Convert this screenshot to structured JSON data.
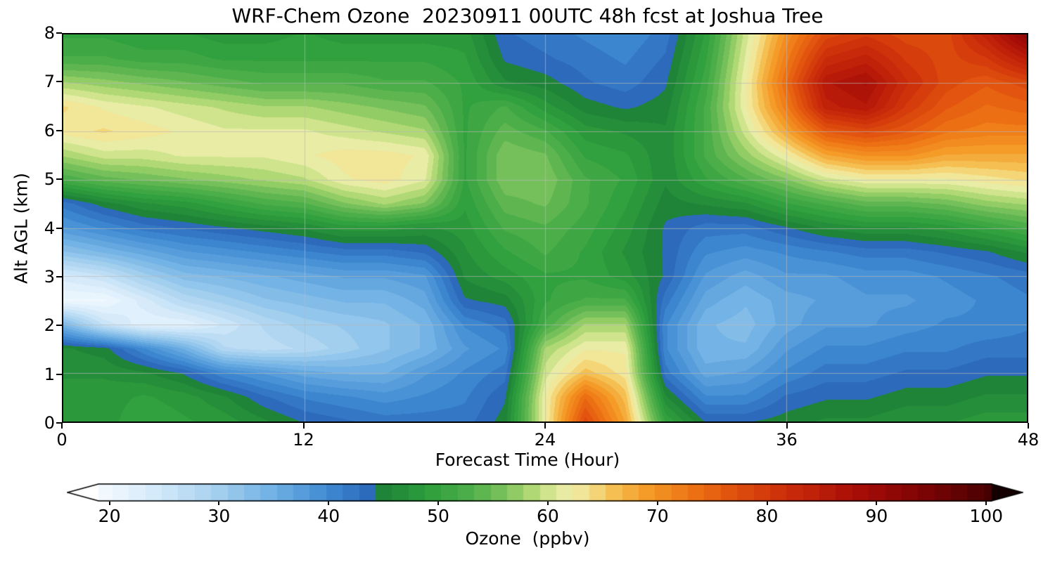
{
  "chart_data": {
    "type": "heatmap",
    "title": "WRF-Chem Ozone  20230911 00UTC 48h fcst at Joshua Tree",
    "xlabel": "Forecast Time (Hour)",
    "ylabel": "Alt AGL (km)",
    "colorbar_label": "Ozone  (ppbv)",
    "x_range": [
      0,
      48
    ],
    "y_range": [
      0,
      8
    ],
    "x_ticks": [
      0,
      12,
      24,
      36,
      48
    ],
    "y_ticks": [
      0,
      1,
      2,
      3,
      4,
      5,
      6,
      7,
      8
    ],
    "colorbar_ticks": [
      20,
      30,
      40,
      50,
      60,
      70,
      80,
      90,
      100
    ],
    "colorbar_range": [
      19,
      100.5
    ],
    "grid": true,
    "quantize_step": 1.5,
    "x": [
      0,
      2,
      4,
      6,
      8,
      10,
      12,
      14,
      16,
      18,
      20,
      22,
      24,
      26,
      28,
      30,
      32,
      34,
      36,
      38,
      40,
      42,
      44,
      46,
      48
    ],
    "y": [
      0,
      0.5,
      1,
      1.5,
      2,
      2.5,
      3,
      3.5,
      4,
      4.5,
      5,
      5.5,
      6,
      6.5,
      7,
      7.5,
      8
    ],
    "values": [
      [
        48,
        48,
        50,
        49,
        48,
        46,
        44,
        43,
        42,
        42,
        42,
        45,
        62,
        78,
        68,
        50,
        44,
        44,
        45,
        46,
        46,
        47,
        47,
        48,
        48
      ],
      [
        48,
        48,
        49,
        48,
        46,
        43,
        41,
        40,
        39,
        40,
        41,
        44,
        62,
        74,
        66,
        46,
        40,
        40,
        43,
        44,
        44,
        45,
        45,
        46,
        46
      ],
      [
        47,
        47,
        46,
        44,
        40,
        38,
        36,
        35,
        35,
        38,
        40,
        42,
        60,
        66,
        63,
        42,
        36,
        37,
        40,
        42,
        42,
        43,
        43,
        44,
        44
      ],
      [
        46,
        45,
        40,
        35,
        28,
        27,
        28,
        30,
        32,
        34,
        38,
        40,
        58,
        62,
        62,
        40,
        34,
        34,
        38,
        40,
        40,
        41,
        41,
        42,
        42
      ],
      [
        34,
        26,
        22,
        22,
        25,
        28,
        30,
        31,
        32,
        34,
        40,
        42,
        52,
        58,
        58,
        40,
        34,
        33,
        36,
        38,
        38,
        39,
        40,
        40,
        41
      ],
      [
        20,
        20,
        24,
        28,
        30,
        32,
        33,
        34,
        34,
        36,
        44,
        45,
        50,
        52,
        52,
        42,
        36,
        34,
        36,
        37,
        38,
        38,
        39,
        40,
        41
      ],
      [
        24,
        26,
        30,
        33,
        34,
        35,
        36,
        37,
        37,
        38,
        46,
        48,
        50,
        50,
        48,
        44,
        38,
        36,
        38,
        38,
        39,
        39,
        40,
        41,
        42
      ],
      [
        32,
        34,
        36,
        38,
        39,
        40,
        41,
        42,
        42,
        43,
        47,
        50,
        52,
        50,
        47,
        44,
        40,
        39,
        40,
        41,
        42,
        42,
        43,
        44,
        46
      ],
      [
        38,
        40,
        42,
        43,
        44,
        45,
        46,
        48,
        48,
        47,
        48,
        52,
        53,
        51,
        48,
        44,
        42,
        42,
        44,
        46,
        47,
        47,
        48,
        50,
        52
      ],
      [
        42,
        45,
        47,
        48,
        50,
        52,
        53,
        56,
        58,
        56,
        49,
        54,
        55,
        52,
        49,
        45,
        46,
        47,
        50,
        52,
        54,
        54,
        55,
        57,
        58
      ],
      [
        52,
        54,
        55,
        56,
        57,
        58,
        59,
        62,
        63,
        61,
        50,
        56,
        56,
        52,
        50,
        46,
        50,
        53,
        56,
        60,
        62,
        62,
        62,
        63,
        64
      ],
      [
        58,
        60,
        60,
        61,
        61,
        61,
        62,
        63,
        63,
        62,
        50,
        56,
        55,
        50,
        49,
        46,
        52,
        57,
        62,
        68,
        70,
        70,
        68,
        68,
        68
      ],
      [
        63,
        64,
        63,
        62,
        61,
        61,
        61,
        60,
        59,
        58,
        50,
        54,
        52,
        48,
        47,
        46,
        52,
        60,
        68,
        76,
        78,
        76,
        73,
        72,
        72
      ],
      [
        64,
        62,
        61,
        60,
        59,
        58,
        58,
        57,
        56,
        55,
        50,
        52,
        48,
        45,
        44,
        45,
        52,
        62,
        72,
        84,
        86,
        80,
        76,
        74,
        75
      ],
      [
        58,
        57,
        56,
        55,
        54,
        53,
        53,
        53,
        52,
        52,
        50,
        46,
        45,
        43,
        42,
        44,
        51,
        62,
        74,
        86,
        88,
        82,
        78,
        76,
        78
      ],
      [
        52,
        52,
        51,
        51,
        50,
        50,
        50,
        50,
        50,
        50,
        49,
        44,
        43,
        42,
        41,
        43,
        50,
        61,
        72,
        82,
        84,
        80,
        78,
        80,
        85
      ],
      [
        50,
        50,
        49,
        49,
        48,
        48,
        49,
        48,
        48,
        48,
        48,
        43,
        42,
        41,
        40,
        42,
        49,
        60,
        70,
        78,
        80,
        78,
        78,
        84,
        92
      ]
    ],
    "colormap": [
      [
        15,
        "#ffffff"
      ],
      [
        20,
        "#f0f8fe"
      ],
      [
        25,
        "#cfe7f9"
      ],
      [
        30,
        "#a3cfef"
      ],
      [
        35,
        "#6fb0e4"
      ],
      [
        40,
        "#3f8ad2"
      ],
      [
        44,
        "#2a66b8"
      ],
      [
        45,
        "#1f8438"
      ],
      [
        49,
        "#2d9e3c"
      ],
      [
        53,
        "#50b04b"
      ],
      [
        56,
        "#7cc35e"
      ],
      [
        58,
        "#a6d46c"
      ],
      [
        60,
        "#cfe48c"
      ],
      [
        62,
        "#f0eead"
      ],
      [
        64,
        "#f3dd85"
      ],
      [
        66,
        "#f5bf52"
      ],
      [
        69,
        "#f49b28"
      ],
      [
        73,
        "#ee7414"
      ],
      [
        77,
        "#e0500e"
      ],
      [
        82,
        "#ca2b0a"
      ],
      [
        88,
        "#a90e07"
      ],
      [
        94,
        "#7f0405"
      ],
      [
        100,
        "#4c0103"
      ],
      [
        105,
        "#140000"
      ]
    ],
    "grid_color": "#b8b8b8"
  }
}
